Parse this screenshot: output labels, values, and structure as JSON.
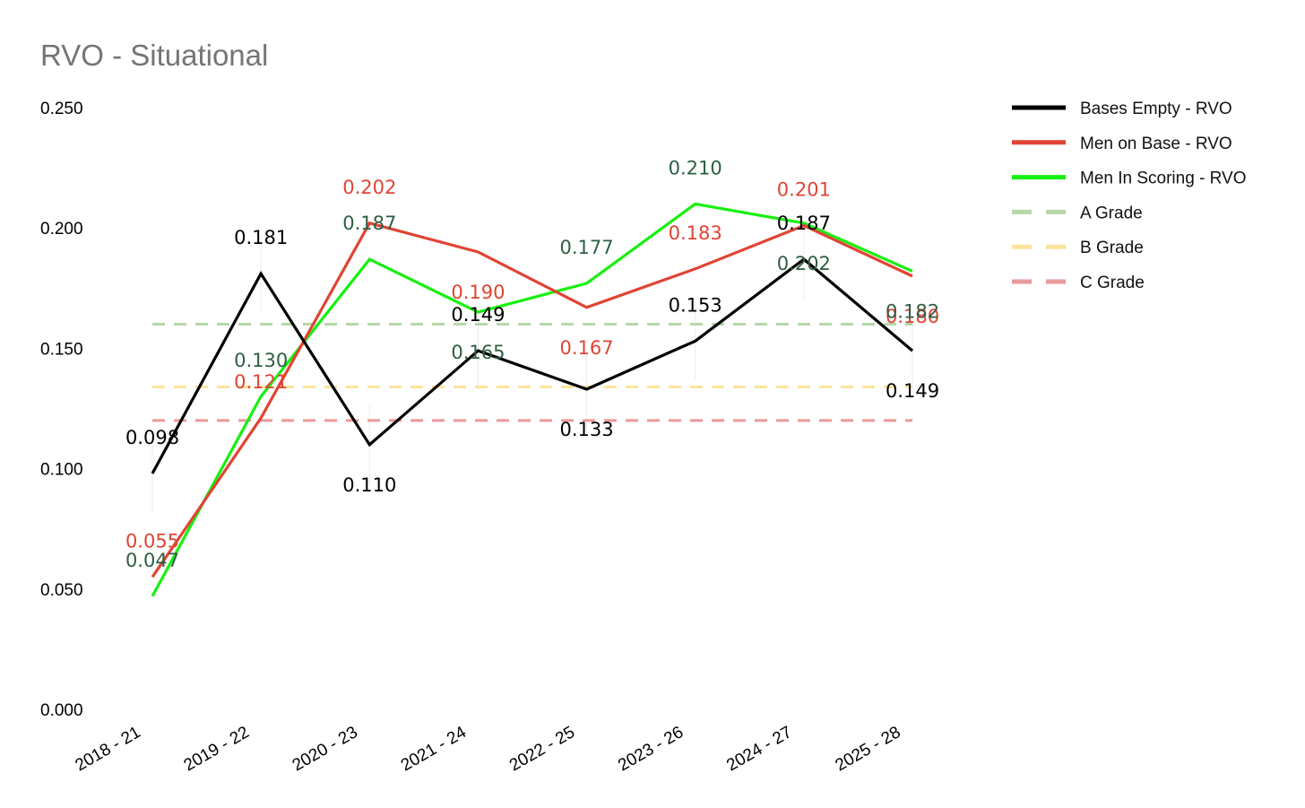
{
  "chart_data": {
    "type": "line",
    "title": "RVO - Situational",
    "xlabel": "",
    "ylabel": "",
    "categories": [
      "2018 - 21",
      "2019 - 22",
      "2020 - 23",
      "2021 - 24",
      "2022 - 25",
      "2023 - 26",
      "2024 - 27",
      "2025 - 28"
    ],
    "ylim": [
      0,
      0.25
    ],
    "yticks": [
      "0.000",
      "0.050",
      "0.100",
      "0.150",
      "0.200",
      "0.250"
    ],
    "grid": false,
    "legend_position": "top-right",
    "series": [
      {
        "name": "Bases Empty - RVO",
        "color": "#000000",
        "label_color": "#000000",
        "values": [
          0.098,
          0.181,
          0.11,
          0.149,
          0.133,
          0.153,
          0.187,
          0.149
        ],
        "labels": [
          "0.098",
          "0.181",
          "0.110",
          "0.149",
          "0.133",
          "0.153",
          "0.187",
          "0.149"
        ]
      },
      {
        "name": "Men on Base - RVO",
        "color": "#e04434",
        "label_color": "#e04434",
        "values": [
          0.055,
          0.121,
          0.202,
          0.19,
          0.167,
          0.183,
          0.201,
          0.18
        ],
        "labels": [
          "0.055",
          "0.121",
          "0.202",
          "0.190",
          "0.167",
          "0.183",
          "0.201",
          "0.180"
        ]
      },
      {
        "name": "Men In Scoring - RVO",
        "color": "#17f010",
        "label_color": "#2e5e44",
        "values": [
          0.047,
          0.13,
          0.187,
          0.165,
          0.177,
          0.21,
          0.202,
          0.182
        ],
        "labels": [
          "0.047",
          "0.130",
          "0.187",
          "0.165",
          "0.177",
          "0.210",
          "0.202",
          "0.182"
        ]
      }
    ],
    "reference_lines": [
      {
        "name": "A Grade",
        "value": 0.16,
        "color": "#b7d7a8"
      },
      {
        "name": "B Grade",
        "value": 0.134,
        "color": "#fde49b"
      },
      {
        "name": "C Grade",
        "value": 0.12,
        "color": "#ea9999"
      }
    ]
  }
}
